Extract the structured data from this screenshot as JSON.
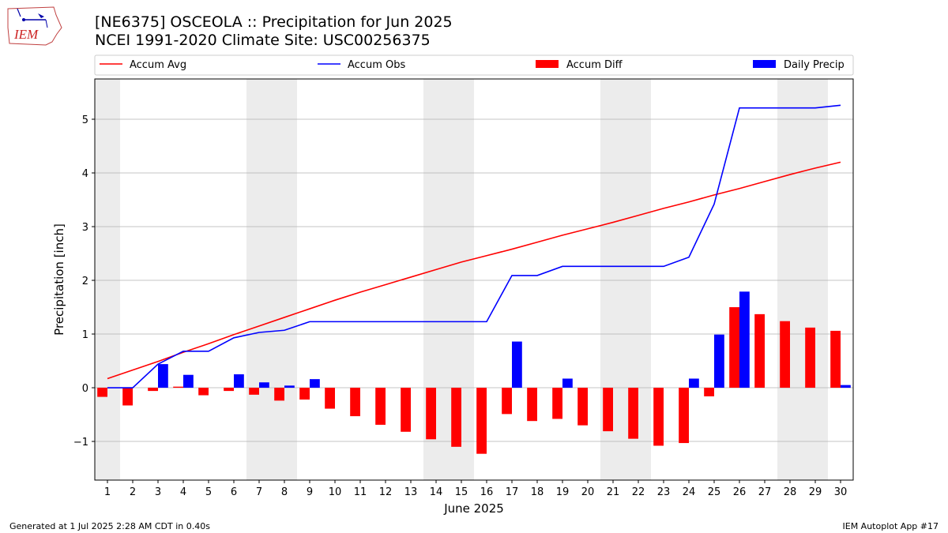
{
  "header": {
    "title_line1": "[NE6375] OSCEOLA :: Precipitation for Jun 2025",
    "title_line2": "NCEI 1991-2020 Climate Site: USC00256375",
    "logo_text": "IEM"
  },
  "footer": {
    "generated": "Generated at 1 Jul 2025 2:28 AM CDT in 0.40s",
    "app": "IEM Autoplot App #17"
  },
  "chart_data": {
    "type": "bar",
    "xlabel": "June 2025",
    "ylabel": "Precipitation [inch]",
    "x": [
      1,
      2,
      3,
      4,
      5,
      6,
      7,
      8,
      9,
      10,
      11,
      12,
      13,
      14,
      15,
      16,
      17,
      18,
      19,
      20,
      21,
      22,
      23,
      24,
      25,
      26,
      27,
      28,
      29,
      30
    ],
    "ylim": [
      -1.72,
      5.75
    ],
    "yticks": [
      -1,
      0,
      1,
      2,
      3,
      4,
      5
    ],
    "ytick_labels": [
      "−1",
      "0",
      "1",
      "2",
      "3",
      "4",
      "5"
    ],
    "grid": "horizontal",
    "legend_placement": "top, above plot",
    "weekend_shading": [
      [
        1,
        1
      ],
      [
        7,
        8
      ],
      [
        14,
        15
      ],
      [
        21,
        22
      ],
      [
        28,
        29
      ]
    ],
    "series": [
      {
        "name": "Accum Avg",
        "kind": "line",
        "color": "#ff0000",
        "values": [
          0.17,
          0.33,
          0.49,
          0.66,
          0.82,
          0.99,
          1.15,
          1.31,
          1.47,
          1.63,
          1.78,
          1.92,
          2.06,
          2.2,
          2.34,
          2.46,
          2.58,
          2.71,
          2.84,
          2.96,
          3.08,
          3.21,
          3.34,
          3.46,
          3.59,
          3.71,
          3.84,
          3.97,
          4.09,
          4.2
        ]
      },
      {
        "name": "Accum Obs",
        "kind": "line",
        "color": "#0000ff",
        "values": [
          0.0,
          0.0,
          0.44,
          0.68,
          0.68,
          0.93,
          1.03,
          1.07,
          1.23,
          1.23,
          1.23,
          1.23,
          1.23,
          1.23,
          1.23,
          1.23,
          2.09,
          2.09,
          2.26,
          2.26,
          2.26,
          2.26,
          2.26,
          2.43,
          3.42,
          5.21,
          5.21,
          5.21,
          5.21,
          5.26
        ]
      },
      {
        "name": "Accum Diff",
        "kind": "bar",
        "color": "#ff0000",
        "values": [
          -0.17,
          -0.33,
          -0.06,
          0.02,
          -0.14,
          -0.06,
          -0.13,
          -0.24,
          -0.22,
          -0.39,
          -0.53,
          -0.69,
          -0.82,
          -0.96,
          -1.1,
          -1.23,
          -0.49,
          -0.62,
          -0.58,
          -0.7,
          -0.81,
          -0.95,
          -1.08,
          -1.03,
          -0.16,
          1.5,
          1.37,
          1.24,
          1.12,
          1.06
        ]
      },
      {
        "name": "Daily Precip",
        "kind": "bar",
        "color": "#0000ff",
        "values": [
          0.0,
          0.0,
          0.44,
          0.24,
          0.0,
          0.25,
          0.1,
          0.04,
          0.16,
          0.0,
          0.0,
          0.0,
          0.0,
          0.0,
          0.0,
          0.0,
          0.86,
          0.0,
          0.17,
          0.0,
          0.0,
          0.0,
          0.0,
          0.17,
          0.99,
          1.79,
          0.0,
          0.0,
          0.0,
          0.05
        ]
      }
    ]
  }
}
